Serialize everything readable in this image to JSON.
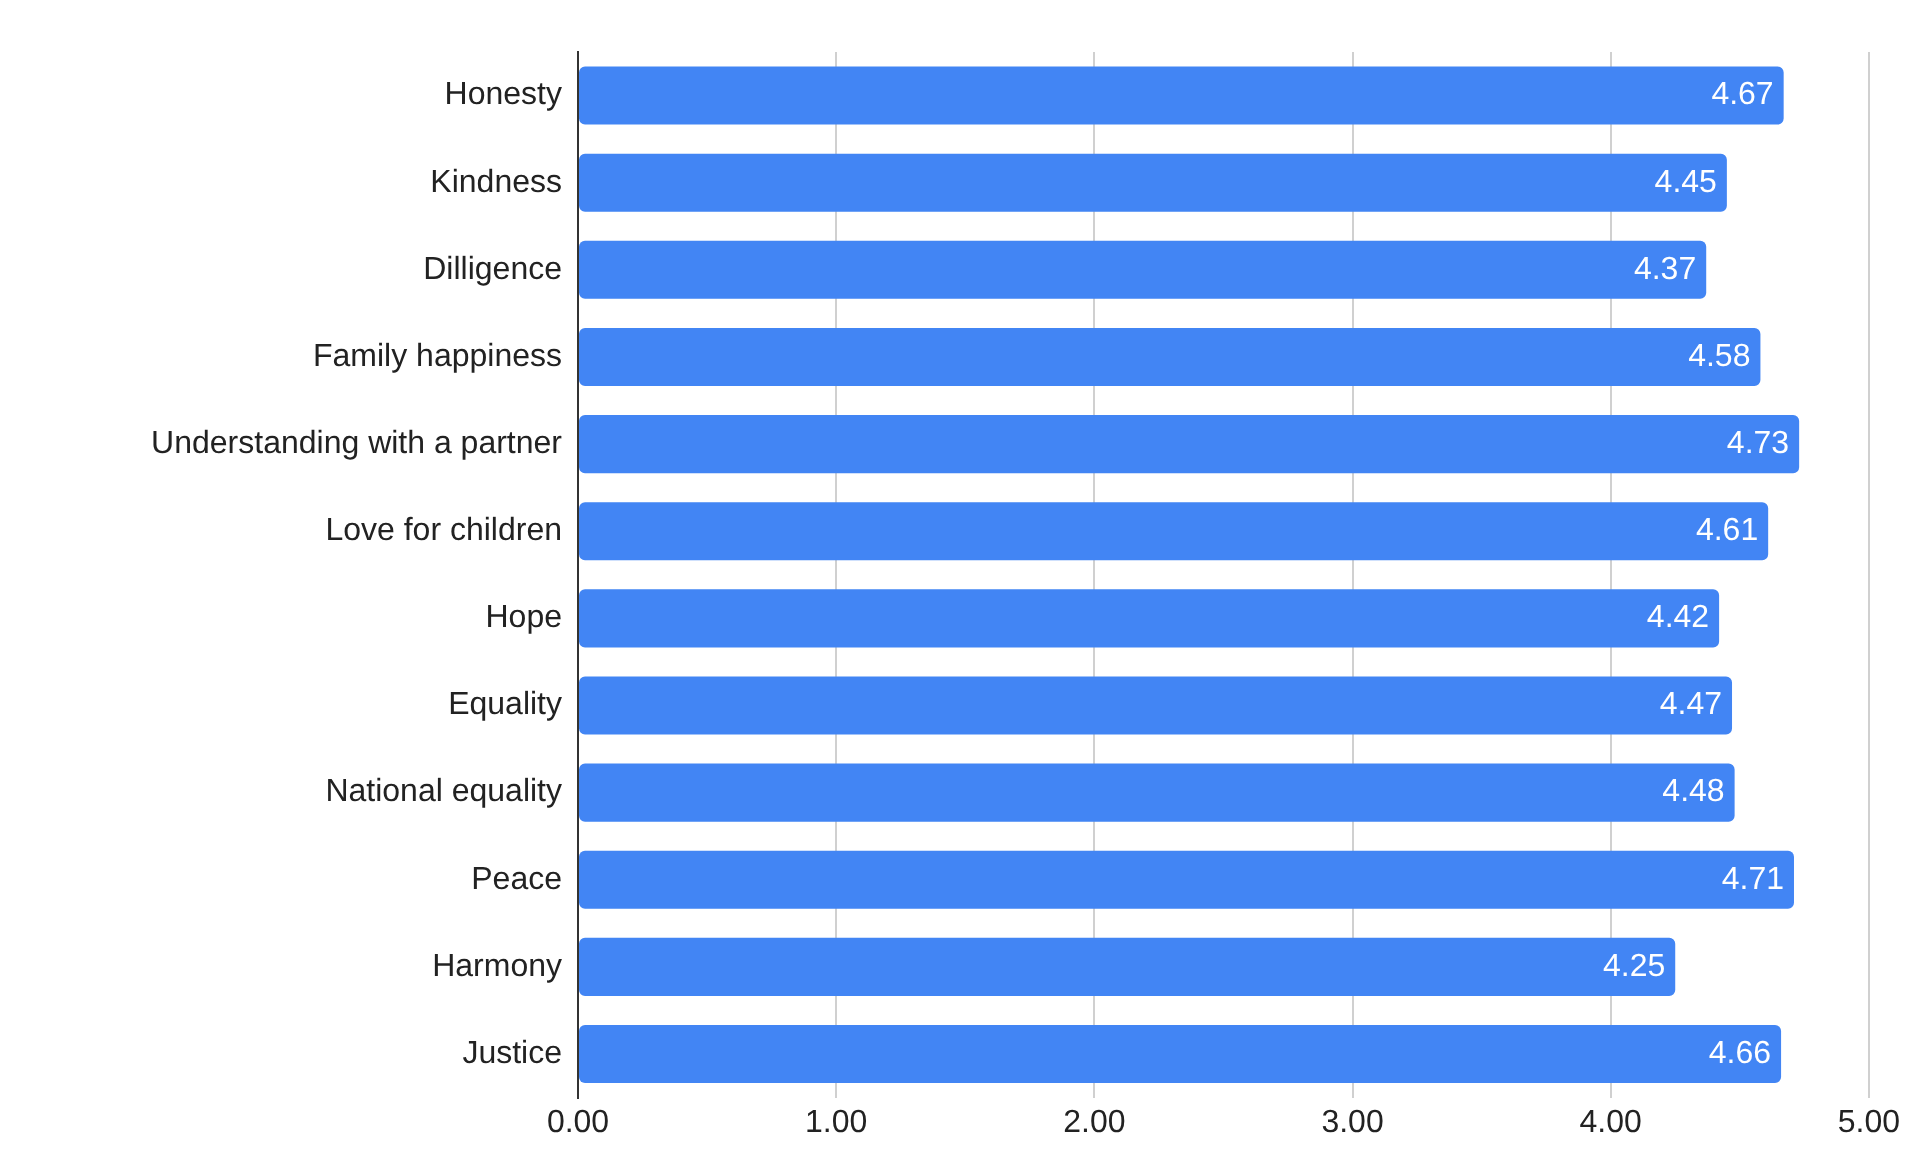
{
  "chart_data": {
    "type": "bar",
    "orientation": "horizontal",
    "categories": [
      "Honesty",
      "Kindness",
      "Dilligence",
      "Family happiness",
      "Understanding with a partner",
      "Love for children",
      "Hope",
      "Equality",
      "National equality",
      "Peace",
      "Harmony",
      "Justice"
    ],
    "values": [
      4.67,
      4.45,
      4.37,
      4.58,
      4.73,
      4.61,
      4.42,
      4.47,
      4.48,
      4.71,
      4.25,
      4.66
    ],
    "color": "#4285f4",
    "xlim": [
      0,
      5
    ],
    "xticks": [
      {
        "value": 0,
        "label": "0.00"
      },
      {
        "value": 1,
        "label": "1.00"
      },
      {
        "value": 2,
        "label": "2.00"
      },
      {
        "value": 3,
        "label": "3.00"
      },
      {
        "value": 4,
        "label": "4.00"
      },
      {
        "value": 5,
        "label": "5.00"
      }
    ],
    "grid": "x",
    "data_labels": true,
    "legend": false
  }
}
